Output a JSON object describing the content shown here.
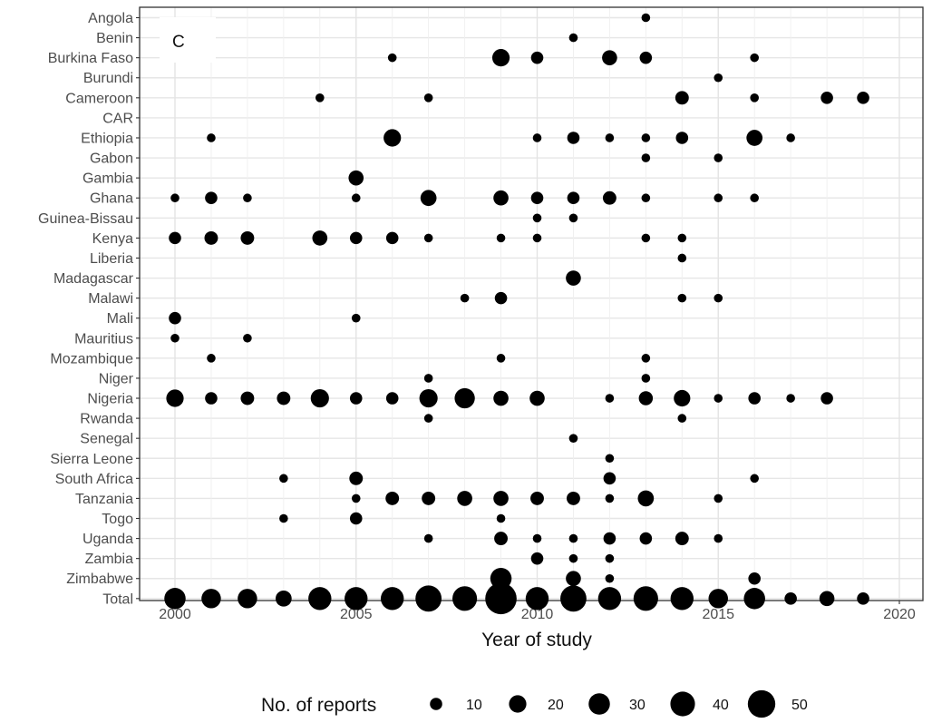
{
  "chart_data": {
    "type": "scatter",
    "panel_label": "C",
    "xlabel": "Year of study",
    "ylabel": "",
    "xlim": [
      1999,
      2021
    ],
    "x_ticks": [
      2000,
      2005,
      2010,
      2015,
      2020
    ],
    "grid": true,
    "legend": {
      "title": "No. of reports",
      "position": "bottom",
      "sizes": [
        10,
        20,
        30,
        40,
        50
      ]
    },
    "size_encoding": "No. of reports",
    "categories": [
      "Angola",
      "Benin",
      "Burkina Faso",
      "Burundi",
      "Cameroon",
      "CAR",
      "Ethiopia",
      "Gabon",
      "Gambia",
      "Ghana",
      "Guinea-Bissau",
      "Kenya",
      "Liberia",
      "Madagascar",
      "Malawi",
      "Mali",
      "Mauritius",
      "Mozambique",
      "Niger",
      "Nigeria",
      "Rwanda",
      "Senegal",
      "Sierra Leone",
      "South Africa",
      "Tanzania",
      "Togo",
      "Uganda",
      "Zambia",
      "Zimbabwe",
      "Total"
    ],
    "points": [
      {
        "country": "Angola",
        "year": 2013,
        "reports": 5
      },
      {
        "country": "Benin",
        "year": 2011,
        "reports": 5
      },
      {
        "country": "Burkina Faso",
        "year": 2006,
        "reports": 5
      },
      {
        "country": "Burkina Faso",
        "year": 2009,
        "reports": 20
      },
      {
        "country": "Burkina Faso",
        "year": 2010,
        "reports": 10
      },
      {
        "country": "Burkina Faso",
        "year": 2012,
        "reports": 15
      },
      {
        "country": "Burkina Faso",
        "year": 2013,
        "reports": 10
      },
      {
        "country": "Burkina Faso",
        "year": 2016,
        "reports": 5
      },
      {
        "country": "Burundi",
        "year": 2015,
        "reports": 5
      },
      {
        "country": "Cameroon",
        "year": 2004,
        "reports": 5
      },
      {
        "country": "Cameroon",
        "year": 2007,
        "reports": 5
      },
      {
        "country": "Cameroon",
        "year": 2014,
        "reports": 12
      },
      {
        "country": "Cameroon",
        "year": 2016,
        "reports": 5
      },
      {
        "country": "Cameroon",
        "year": 2018,
        "reports": 10
      },
      {
        "country": "Cameroon",
        "year": 2019,
        "reports": 10
      },
      {
        "country": "Ethiopia",
        "year": 2001,
        "reports": 5
      },
      {
        "country": "Ethiopia",
        "year": 2006,
        "reports": 20
      },
      {
        "country": "Ethiopia",
        "year": 2010,
        "reports": 5
      },
      {
        "country": "Ethiopia",
        "year": 2011,
        "reports": 10
      },
      {
        "country": "Ethiopia",
        "year": 2012,
        "reports": 5
      },
      {
        "country": "Ethiopia",
        "year": 2013,
        "reports": 5
      },
      {
        "country": "Ethiopia",
        "year": 2014,
        "reports": 10
      },
      {
        "country": "Ethiopia",
        "year": 2016,
        "reports": 17
      },
      {
        "country": "Ethiopia",
        "year": 2017,
        "reports": 5
      },
      {
        "country": "Gabon",
        "year": 2013,
        "reports": 5
      },
      {
        "country": "Gabon",
        "year": 2015,
        "reports": 5
      },
      {
        "country": "Gambia",
        "year": 2005,
        "reports": 15
      },
      {
        "country": "Ghana",
        "year": 2000,
        "reports": 5
      },
      {
        "country": "Ghana",
        "year": 2001,
        "reports": 10
      },
      {
        "country": "Ghana",
        "year": 2002,
        "reports": 5
      },
      {
        "country": "Ghana",
        "year": 2005,
        "reports": 5
      },
      {
        "country": "Ghana",
        "year": 2007,
        "reports": 17
      },
      {
        "country": "Ghana",
        "year": 2009,
        "reports": 15
      },
      {
        "country": "Ghana",
        "year": 2010,
        "reports": 10
      },
      {
        "country": "Ghana",
        "year": 2011,
        "reports": 10
      },
      {
        "country": "Ghana",
        "year": 2012,
        "reports": 12
      },
      {
        "country": "Ghana",
        "year": 2013,
        "reports": 5
      },
      {
        "country": "Ghana",
        "year": 2015,
        "reports": 5
      },
      {
        "country": "Ghana",
        "year": 2016,
        "reports": 5
      },
      {
        "country": "Guinea-Bissau",
        "year": 2010,
        "reports": 5
      },
      {
        "country": "Guinea-Bissau",
        "year": 2011,
        "reports": 5
      },
      {
        "country": "Kenya",
        "year": 2000,
        "reports": 10
      },
      {
        "country": "Kenya",
        "year": 2001,
        "reports": 12
      },
      {
        "country": "Kenya",
        "year": 2002,
        "reports": 12
      },
      {
        "country": "Kenya",
        "year": 2004,
        "reports": 15
      },
      {
        "country": "Kenya",
        "year": 2005,
        "reports": 10
      },
      {
        "country": "Kenya",
        "year": 2006,
        "reports": 10
      },
      {
        "country": "Kenya",
        "year": 2007,
        "reports": 5
      },
      {
        "country": "Kenya",
        "year": 2009,
        "reports": 5
      },
      {
        "country": "Kenya",
        "year": 2010,
        "reports": 5
      },
      {
        "country": "Kenya",
        "year": 2013,
        "reports": 5
      },
      {
        "country": "Kenya",
        "year": 2014,
        "reports": 5
      },
      {
        "country": "Liberia",
        "year": 2014,
        "reports": 5
      },
      {
        "country": "Madagascar",
        "year": 2011,
        "reports": 15
      },
      {
        "country": "Malawi",
        "year": 2008,
        "reports": 5
      },
      {
        "country": "Malawi",
        "year": 2009,
        "reports": 10
      },
      {
        "country": "Malawi",
        "year": 2014,
        "reports": 5
      },
      {
        "country": "Malawi",
        "year": 2015,
        "reports": 5
      },
      {
        "country": "Mali",
        "year": 2000,
        "reports": 10
      },
      {
        "country": "Mali",
        "year": 2005,
        "reports": 5
      },
      {
        "country": "Mauritius",
        "year": 2000,
        "reports": 5
      },
      {
        "country": "Mauritius",
        "year": 2002,
        "reports": 5
      },
      {
        "country": "Mozambique",
        "year": 2001,
        "reports": 5
      },
      {
        "country": "Mozambique",
        "year": 2009,
        "reports": 5
      },
      {
        "country": "Mozambique",
        "year": 2013,
        "reports": 5
      },
      {
        "country": "Niger",
        "year": 2007,
        "reports": 5
      },
      {
        "country": "Niger",
        "year": 2013,
        "reports": 5
      },
      {
        "country": "Nigeria",
        "year": 2000,
        "reports": 20
      },
      {
        "country": "Nigeria",
        "year": 2001,
        "reports": 10
      },
      {
        "country": "Nigeria",
        "year": 2002,
        "reports": 12
      },
      {
        "country": "Nigeria",
        "year": 2003,
        "reports": 12
      },
      {
        "country": "Nigeria",
        "year": 2004,
        "reports": 22
      },
      {
        "country": "Nigeria",
        "year": 2005,
        "reports": 10
      },
      {
        "country": "Nigeria",
        "year": 2006,
        "reports": 10
      },
      {
        "country": "Nigeria",
        "year": 2007,
        "reports": 22
      },
      {
        "country": "Nigeria",
        "year": 2008,
        "reports": 27
      },
      {
        "country": "Nigeria",
        "year": 2009,
        "reports": 15
      },
      {
        "country": "Nigeria",
        "year": 2010,
        "reports": 15
      },
      {
        "country": "Nigeria",
        "year": 2012,
        "reports": 5
      },
      {
        "country": "Nigeria",
        "year": 2013,
        "reports": 13
      },
      {
        "country": "Nigeria",
        "year": 2014,
        "reports": 18
      },
      {
        "country": "Nigeria",
        "year": 2015,
        "reports": 5
      },
      {
        "country": "Nigeria",
        "year": 2016,
        "reports": 10
      },
      {
        "country": "Nigeria",
        "year": 2017,
        "reports": 5
      },
      {
        "country": "Nigeria",
        "year": 2018,
        "reports": 10
      },
      {
        "country": "Rwanda",
        "year": 2007,
        "reports": 5
      },
      {
        "country": "Rwanda",
        "year": 2014,
        "reports": 5
      },
      {
        "country": "Senegal",
        "year": 2011,
        "reports": 5
      },
      {
        "country": "Sierra Leone",
        "year": 2012,
        "reports": 5
      },
      {
        "country": "South Africa",
        "year": 2003,
        "reports": 5
      },
      {
        "country": "South Africa",
        "year": 2005,
        "reports": 12
      },
      {
        "country": "South Africa",
        "year": 2012,
        "reports": 10
      },
      {
        "country": "South Africa",
        "year": 2016,
        "reports": 5
      },
      {
        "country": "Tanzania",
        "year": 2005,
        "reports": 5
      },
      {
        "country": "Tanzania",
        "year": 2006,
        "reports": 12
      },
      {
        "country": "Tanzania",
        "year": 2007,
        "reports": 12
      },
      {
        "country": "Tanzania",
        "year": 2008,
        "reports": 15
      },
      {
        "country": "Tanzania",
        "year": 2009,
        "reports": 15
      },
      {
        "country": "Tanzania",
        "year": 2010,
        "reports": 12
      },
      {
        "country": "Tanzania",
        "year": 2011,
        "reports": 12
      },
      {
        "country": "Tanzania",
        "year": 2012,
        "reports": 5
      },
      {
        "country": "Tanzania",
        "year": 2013,
        "reports": 17
      },
      {
        "country": "Tanzania",
        "year": 2015,
        "reports": 5
      },
      {
        "country": "Togo",
        "year": 2003,
        "reports": 5
      },
      {
        "country": "Togo",
        "year": 2005,
        "reports": 10
      },
      {
        "country": "Togo",
        "year": 2009,
        "reports": 5
      },
      {
        "country": "Uganda",
        "year": 2007,
        "reports": 5
      },
      {
        "country": "Uganda",
        "year": 2009,
        "reports": 12
      },
      {
        "country": "Uganda",
        "year": 2010,
        "reports": 5
      },
      {
        "country": "Uganda",
        "year": 2011,
        "reports": 5
      },
      {
        "country": "Uganda",
        "year": 2012,
        "reports": 10
      },
      {
        "country": "Uganda",
        "year": 2013,
        "reports": 10
      },
      {
        "country": "Uganda",
        "year": 2014,
        "reports": 12
      },
      {
        "country": "Uganda",
        "year": 2015,
        "reports": 5
      },
      {
        "country": "Zambia",
        "year": 2010,
        "reports": 10
      },
      {
        "country": "Zambia",
        "year": 2011,
        "reports": 5
      },
      {
        "country": "Zambia",
        "year": 2012,
        "reports": 5
      },
      {
        "country": "Zimbabwe",
        "year": 2009,
        "reports": 30
      },
      {
        "country": "Zimbabwe",
        "year": 2011,
        "reports": 15
      },
      {
        "country": "Zimbabwe",
        "year": 2012,
        "reports": 5
      },
      {
        "country": "Zimbabwe",
        "year": 2016,
        "reports": 10
      },
      {
        "country": "Total",
        "year": 2000,
        "reports": 30
      },
      {
        "country": "Total",
        "year": 2001,
        "reports": 25
      },
      {
        "country": "Total",
        "year": 2002,
        "reports": 25
      },
      {
        "country": "Total",
        "year": 2003,
        "reports": 17
      },
      {
        "country": "Total",
        "year": 2004,
        "reports": 35
      },
      {
        "country": "Total",
        "year": 2005,
        "reports": 35
      },
      {
        "country": "Total",
        "year": 2006,
        "reports": 35
      },
      {
        "country": "Total",
        "year": 2007,
        "reports": 45
      },
      {
        "country": "Total",
        "year": 2008,
        "reports": 40
      },
      {
        "country": "Total",
        "year": 2009,
        "reports": 65
      },
      {
        "country": "Total",
        "year": 2010,
        "reports": 35
      },
      {
        "country": "Total",
        "year": 2011,
        "reports": 45
      },
      {
        "country": "Total",
        "year": 2012,
        "reports": 35
      },
      {
        "country": "Total",
        "year": 2013,
        "reports": 40
      },
      {
        "country": "Total",
        "year": 2014,
        "reports": 35
      },
      {
        "country": "Total",
        "year": 2015,
        "reports": 25
      },
      {
        "country": "Total",
        "year": 2016,
        "reports": 30
      },
      {
        "country": "Total",
        "year": 2017,
        "reports": 10
      },
      {
        "country": "Total",
        "year": 2018,
        "reports": 15
      },
      {
        "country": "Total",
        "year": 2019,
        "reports": 10
      }
    ]
  }
}
